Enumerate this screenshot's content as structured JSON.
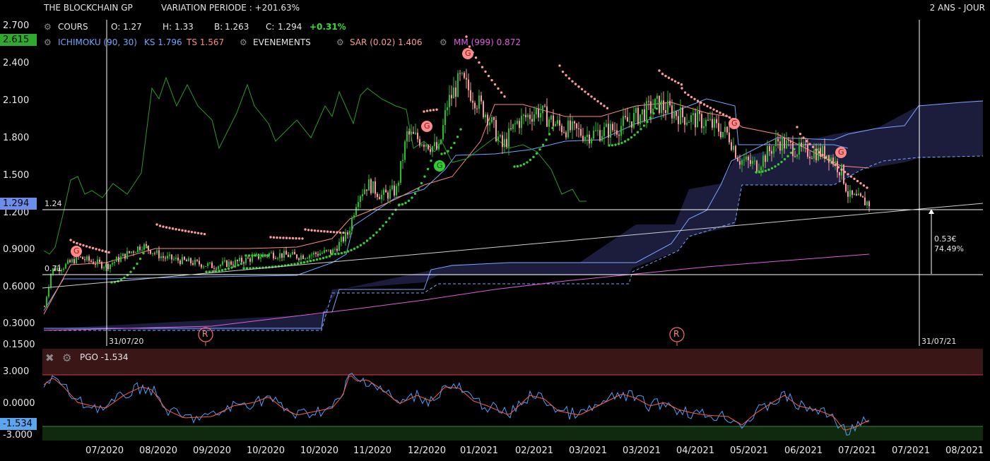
{
  "header": {
    "instrument": "THE BLOCKCHAIN GP",
    "variation": "VARIATION PERIODE : +201.63%",
    "period": "2 ANS - JOUR"
  },
  "legend_row1": {
    "cours": "COURS",
    "open_label": "O:",
    "open": "1.27",
    "high_label": "H:",
    "high": "1.33",
    "low_label": "B:",
    "low": "1.263",
    "close_label": "C:",
    "close": "1.294",
    "change": "+0.31%"
  },
  "legend_row2": {
    "ichimoku": "ICHIMOKU (90, 30)",
    "ks": "KS 1.796",
    "ts": "TS 1.567",
    "evenements": "EVENEMENTS",
    "sar": "SAR (0.02) 1.406",
    "mm": "MM (999) 0.872"
  },
  "price_axis": {
    "ticks": [
      "2.700",
      "2.400",
      "2.100",
      "1.800",
      "1.500",
      "1.200",
      "0.9000",
      "0.6000",
      "0.3000",
      "0.1500"
    ],
    "badge_top": "2.615",
    "badge_last": "1.294"
  },
  "annotations": {
    "level_high": "1.24",
    "level_low": "0.71",
    "measure_value": "0.53€",
    "measure_pct": "74.49%",
    "date_left": "31/07/20",
    "date_right": "31/07/21",
    "event_marker": "R",
    "signal_marker": "G"
  },
  "pgo_panel": {
    "title": "PGO -1.534",
    "ticks": [
      "3.000",
      "0.0000",
      "-3.000"
    ],
    "badge": "-1.534"
  },
  "date_axis": [
    "07/2020",
    "08/2020",
    "09/2020",
    "10/2020",
    "10/2020",
    "11/2020",
    "12/2020",
    "01/2021",
    "02/2021",
    "03/2021",
    "03/2021",
    "04/2021",
    "05/2021",
    "06/2021",
    "07/2021",
    "07/2021",
    "08/2021"
  ],
  "colors": {
    "up": "#22c022",
    "down": "#ff9a9a",
    "kijun": "#6ea7ff",
    "tenkan": "#ff8a80",
    "cloud": "#1c1c3c",
    "mm": "#e05ce0",
    "sar_up": "#33cc33",
    "sar_down": "#ff9a9a",
    "chikou": "#2a9a2a",
    "change": "#33dd33",
    "badge_top": "#2faa2f",
    "badge_last": "#6a8eea",
    "badge_pgo": "#5aa6f0"
  }
}
